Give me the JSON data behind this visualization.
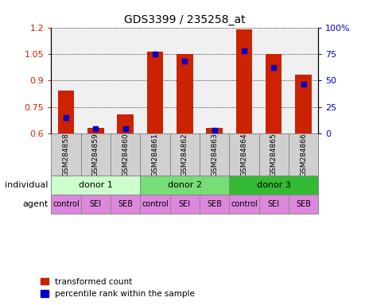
{
  "title": "GDS3399 / 235258_at",
  "samples": [
    "GSM284858",
    "GSM284859",
    "GSM284860",
    "GSM284861",
    "GSM284862",
    "GSM284863",
    "GSM284864",
    "GSM284865",
    "GSM284866"
  ],
  "transformed_count": [
    0.845,
    0.635,
    0.71,
    1.065,
    1.05,
    0.635,
    1.19,
    1.05,
    0.935
  ],
  "percentile_rank": [
    15,
    5,
    5,
    75,
    68,
    3,
    78,
    62,
    47
  ],
  "ylim_left": [
    0.6,
    1.2
  ],
  "ylim_right": [
    0,
    100
  ],
  "yticks_left": [
    0.6,
    0.75,
    0.9,
    1.05,
    1.2
  ],
  "yticks_right": [
    0,
    25,
    50,
    75,
    100
  ],
  "ytick_labels_right": [
    "0",
    "25",
    "50",
    "75",
    "100%"
  ],
  "bar_color": "#cc2200",
  "dot_color": "#0000cc",
  "background_plot": "#f0f0f0",
  "background_sample": "#d0d0d0",
  "individuals": [
    "donor 1",
    "donor 2",
    "donor 3"
  ],
  "individual_colors": [
    "#ccffcc",
    "#77dd77",
    "#33bb33"
  ],
  "agents": [
    "control",
    "SEI",
    "SEB",
    "control",
    "SEI",
    "SEB",
    "control",
    "SEI",
    "SEB"
  ],
  "agent_color": "#dd88dd",
  "legend_bar_label": "transformed count",
  "legend_dot_label": "percentile rank within the sample",
  "individual_label": "individual",
  "agent_label": "agent"
}
